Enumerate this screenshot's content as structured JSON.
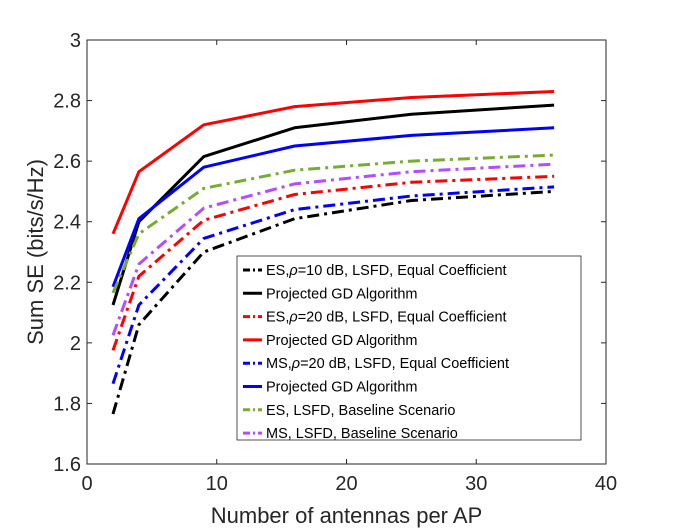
{
  "chart_data": {
    "type": "line",
    "title": "",
    "xlabel": "Number of antennas per AP",
    "ylabel": "Sum SE (bits/s/Hz)",
    "xlim": [
      0,
      40
    ],
    "ylim": [
      1.6,
      3
    ],
    "xticks": [
      0,
      10,
      20,
      30,
      40
    ],
    "yticks": [
      1.6,
      1.8,
      2,
      2.2,
      2.4,
      2.6,
      2.8,
      3
    ],
    "xtick_labels": [
      "0",
      "10",
      "20",
      "30",
      "40"
    ],
    "ytick_labels": [
      "1.6",
      "1.8",
      "2",
      "2.2",
      "2.4",
      "2.6",
      "2.8",
      "3"
    ],
    "grid": false,
    "legend_position": "lower-right",
    "x": [
      2,
      4,
      9,
      16,
      25,
      36
    ],
    "series": [
      {
        "name": "ES,ρ=10 dB, LSFD, Equal Coefficient",
        "legend_prefix": "ES,",
        "legend_rho": "ρ",
        "legend_suffix": "=10 dB, LSFD, Equal Coefficient",
        "color": "#000000",
        "style": "dashdot",
        "values": [
          1.765,
          2.06,
          2.3,
          2.41,
          2.47,
          2.5
        ]
      },
      {
        "name": "Projected GD Algorithm",
        "legend_prefix": "Projected GD Algorithm",
        "legend_rho": "",
        "legend_suffix": "",
        "color": "#000000",
        "style": "solid",
        "values": [
          2.125,
          2.4,
          2.615,
          2.71,
          2.755,
          2.785
        ]
      },
      {
        "name": "ES,ρ=20 dB, LSFD, Equal Coefficient",
        "legend_prefix": "ES,",
        "legend_rho": "ρ",
        "legend_suffix": "=20 dB, LSFD, Equal Coefficient",
        "color": "#ff0000",
        "style": "dashdot",
        "values": [
          1.975,
          2.22,
          2.405,
          2.49,
          2.53,
          2.55
        ]
      },
      {
        "name": "Projected GD Algorithm",
        "legend_prefix": "Projected GD Algorithm",
        "legend_rho": "",
        "legend_suffix": "",
        "color": "#ff0000",
        "style": "solid",
        "values": [
          2.36,
          2.565,
          2.72,
          2.78,
          2.81,
          2.83
        ]
      },
      {
        "name": "MS,ρ=20 dB, LSFD, Equal Coefficient",
        "legend_prefix": "MS,",
        "legend_rho": "ρ",
        "legend_suffix": "=20 dB, LSFD, Equal Coefficient",
        "color": "#0000ff",
        "style": "dashdot",
        "values": [
          1.865,
          2.125,
          2.345,
          2.44,
          2.485,
          2.515
        ]
      },
      {
        "name": "Projected GD Algorithm",
        "legend_prefix": "Projected GD Algorithm",
        "legend_rho": "",
        "legend_suffix": "",
        "color": "#0000ff",
        "style": "solid",
        "values": [
          2.185,
          2.41,
          2.58,
          2.65,
          2.685,
          2.71
        ]
      },
      {
        "name": "ES, LSFD, Baseline Scenario",
        "legend_prefix": "ES, LSFD, Baseline Scenario",
        "legend_rho": "",
        "legend_suffix": "",
        "color": "#77ac30",
        "style": "dashdot",
        "values": [
          2.165,
          2.36,
          2.51,
          2.57,
          2.6,
          2.62
        ]
      },
      {
        "name": "MS, LSFD, Baseline Scenario",
        "legend_prefix": "MS, LSFD, Baseline Scenario",
        "legend_rho": "",
        "legend_suffix": "",
        "color": "#b44cff",
        "style": "dashdot",
        "values": [
          2.025,
          2.26,
          2.445,
          2.525,
          2.565,
          2.59
        ]
      }
    ]
  }
}
